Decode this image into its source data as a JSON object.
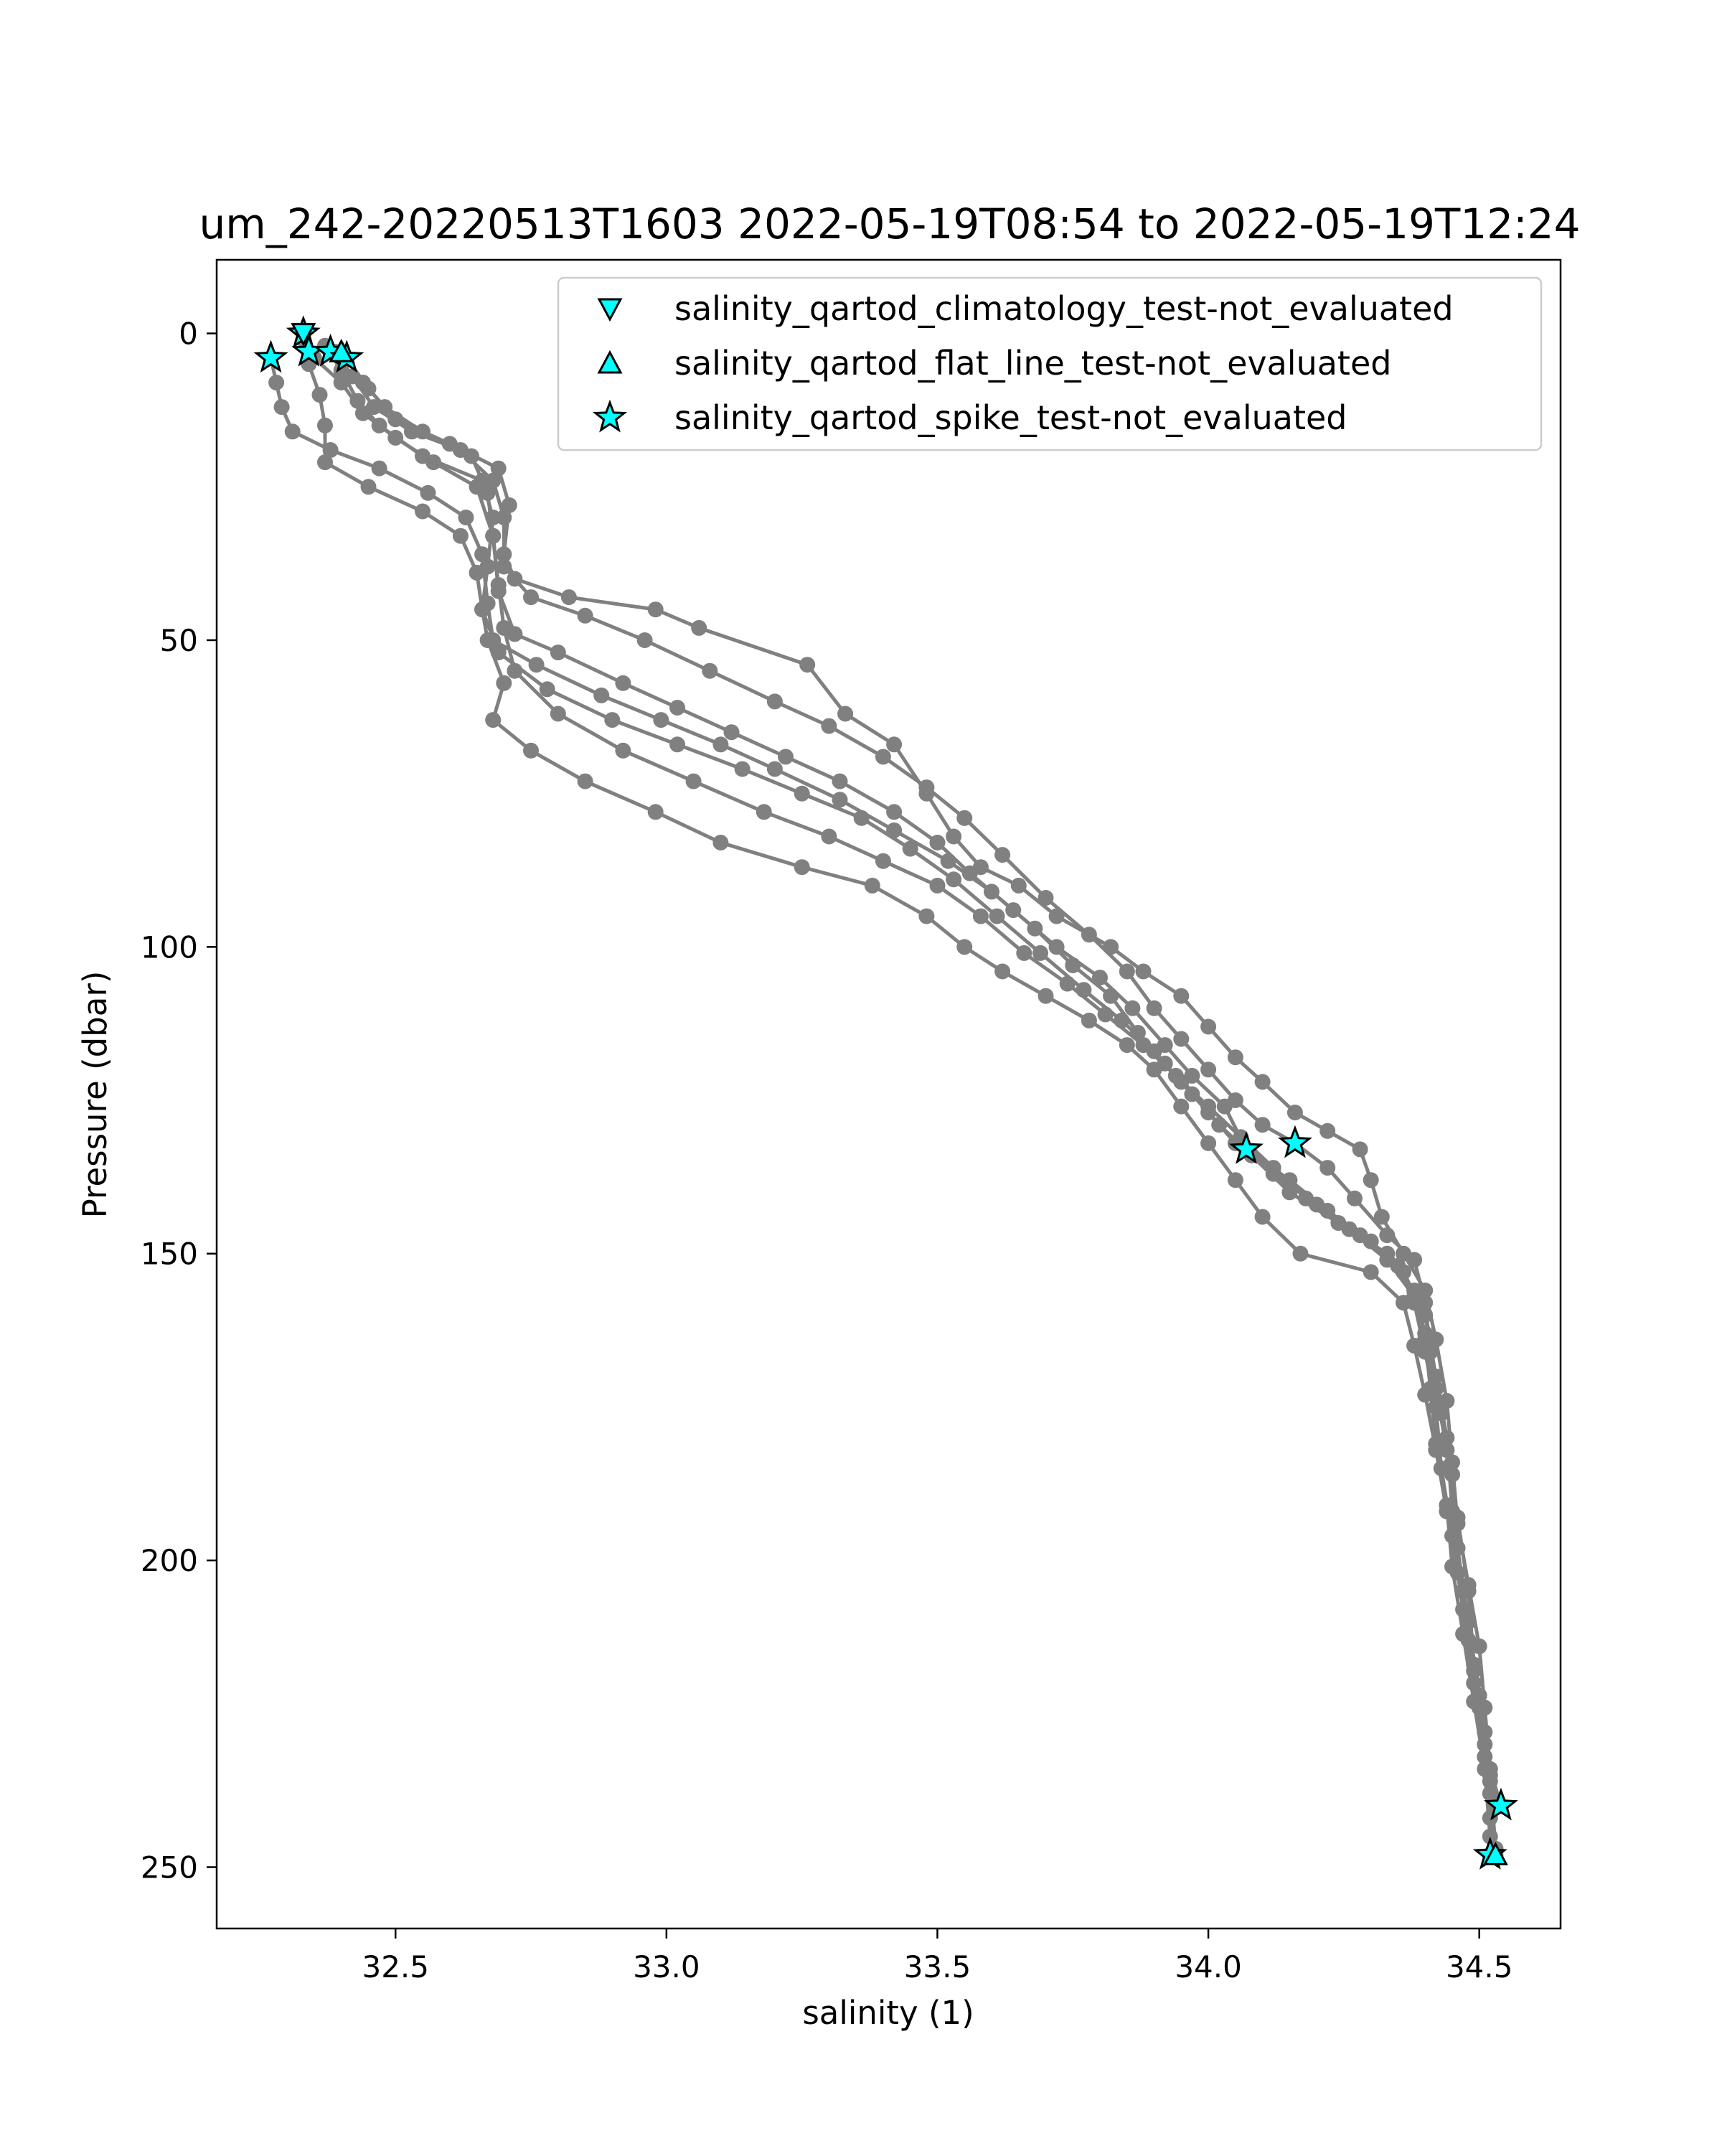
{
  "chart_data": {
    "type": "scatter",
    "title": "um_242-20220513T1603 2022-05-19T08:54 to 2022-05-19T12:24",
    "xlabel": "salinity (1)",
    "ylabel": "Pressure (dbar)",
    "xlim": [
      32.17,
      34.65
    ],
    "ylim": [
      260,
      -12
    ],
    "y_inverted": true,
    "xticks": [
      32.5,
      33.0,
      33.5,
      34.0,
      34.5
    ],
    "xtick_labels": [
      "32.5",
      "33.0",
      "33.5",
      "34.0",
      "34.5"
    ],
    "yticks": [
      0,
      50,
      100,
      150,
      200,
      250
    ],
    "ytick_labels": [
      "0",
      "50",
      "100",
      "150",
      "200",
      "250"
    ],
    "grid": false,
    "legend_position": "top-right",
    "profile_color": "#808080",
    "marker_fill": "#00ffff",
    "marker_edge": "#000000",
    "series": [
      {
        "points": [
          [
            32.33,
            0
          ],
          [
            32.35,
            4
          ],
          [
            32.4,
            8
          ],
          [
            32.44,
            13
          ],
          [
            32.5,
            17
          ],
          [
            32.57,
            21
          ],
          [
            32.65,
            25
          ],
          [
            32.68,
            33
          ],
          [
            32.69,
            42
          ],
          [
            32.72,
            49
          ],
          [
            32.8,
            52
          ],
          [
            32.92,
            57
          ],
          [
            33.02,
            61
          ],
          [
            33.12,
            65
          ],
          [
            33.22,
            69
          ],
          [
            33.32,
            73
          ],
          [
            33.42,
            78
          ],
          [
            33.5,
            83
          ],
          [
            33.56,
            88
          ],
          [
            33.64,
            94
          ],
          [
            33.72,
            100
          ],
          [
            33.8,
            105
          ],
          [
            33.86,
            110
          ],
          [
            33.92,
            116
          ],
          [
            33.97,
            121
          ],
          [
            34.03,
            126
          ],
          [
            34.07,
            133
          ],
          [
            34.15,
            138
          ],
          [
            34.22,
            143
          ],
          [
            34.3,
            148
          ],
          [
            34.36,
            153
          ],
          [
            34.4,
            160
          ],
          [
            34.42,
            170
          ],
          [
            34.44,
            180
          ],
          [
            34.45,
            192
          ],
          [
            34.47,
            205
          ],
          [
            34.49,
            218
          ],
          [
            34.51,
            230
          ],
          [
            34.53,
            240
          ]
        ]
      },
      {
        "points": [
          [
            32.39,
            3
          ],
          [
            32.42,
            7
          ],
          [
            32.46,
            12
          ],
          [
            32.53,
            16
          ],
          [
            32.62,
            19
          ],
          [
            32.68,
            24
          ],
          [
            32.7,
            30
          ],
          [
            32.7,
            38
          ],
          [
            32.75,
            43
          ],
          [
            32.85,
            46
          ],
          [
            32.96,
            50
          ],
          [
            33.08,
            55
          ],
          [
            33.2,
            60
          ],
          [
            33.3,
            64
          ],
          [
            33.4,
            69
          ],
          [
            33.48,
            74
          ],
          [
            33.55,
            79
          ],
          [
            33.62,
            85
          ],
          [
            33.7,
            92
          ],
          [
            33.78,
            98
          ],
          [
            33.85,
            104
          ],
          [
            33.9,
            110
          ],
          [
            33.95,
            115
          ],
          [
            34.0,
            120
          ],
          [
            34.05,
            125
          ],
          [
            34.1,
            129
          ],
          [
            34.16,
            132
          ],
          [
            34.22,
            136
          ],
          [
            34.27,
            141
          ],
          [
            34.33,
            147
          ],
          [
            34.38,
            151
          ],
          [
            34.4,
            158
          ],
          [
            34.41,
            166
          ],
          [
            34.43,
            176
          ],
          [
            34.45,
            186
          ],
          [
            34.46,
            198
          ],
          [
            34.48,
            210
          ],
          [
            34.5,
            222
          ],
          [
            34.52,
            235
          ],
          [
            34.53,
            247
          ]
        ]
      },
      {
        "points": [
          [
            32.27,
            4
          ],
          [
            32.28,
            8
          ],
          [
            32.29,
            12
          ],
          [
            32.31,
            16
          ],
          [
            32.38,
            19
          ],
          [
            32.47,
            22
          ],
          [
            32.56,
            26
          ],
          [
            32.63,
            30
          ],
          [
            32.66,
            36
          ],
          [
            32.67,
            44
          ],
          [
            32.68,
            50
          ],
          [
            32.76,
            54
          ],
          [
            32.88,
            59
          ],
          [
            32.99,
            63
          ],
          [
            33.1,
            67
          ],
          [
            33.2,
            71
          ],
          [
            33.32,
            76
          ],
          [
            33.42,
            81
          ],
          [
            33.52,
            86
          ],
          [
            33.6,
            91
          ],
          [
            33.68,
            97
          ],
          [
            33.75,
            103
          ],
          [
            33.82,
            108
          ],
          [
            33.87,
            114
          ],
          [
            33.92,
            119
          ],
          [
            33.97,
            124
          ],
          [
            34.02,
            129
          ],
          [
            34.08,
            134
          ],
          [
            34.15,
            140
          ],
          [
            34.24,
            145
          ],
          [
            34.33,
            150
          ],
          [
            34.38,
            156
          ],
          [
            34.4,
            163
          ],
          [
            34.42,
            172
          ],
          [
            34.44,
            182
          ],
          [
            34.46,
            193
          ],
          [
            34.48,
            205
          ],
          [
            34.49,
            217
          ],
          [
            34.51,
            228
          ],
          [
            34.52,
            238
          ],
          [
            34.52,
            248
          ]
        ]
      },
      {
        "points": [
          [
            32.33,
            1
          ],
          [
            32.34,
            5
          ],
          [
            32.36,
            10
          ],
          [
            32.37,
            15
          ],
          [
            32.37,
            21
          ],
          [
            32.45,
            25
          ],
          [
            32.55,
            29
          ],
          [
            32.62,
            33
          ],
          [
            32.65,
            39
          ],
          [
            32.66,
            45
          ],
          [
            32.69,
            52
          ],
          [
            32.78,
            58
          ],
          [
            32.9,
            63
          ],
          [
            33.02,
            67
          ],
          [
            33.14,
            71
          ],
          [
            33.25,
            75
          ],
          [
            33.36,
            79
          ],
          [
            33.45,
            84
          ],
          [
            33.53,
            89
          ],
          [
            33.61,
            95
          ],
          [
            33.69,
            101
          ],
          [
            33.77,
            107
          ],
          [
            33.84,
            112
          ],
          [
            33.9,
            117
          ],
          [
            33.95,
            122
          ],
          [
            34.0,
            127
          ],
          [
            34.05,
            132
          ],
          [
            34.12,
            137
          ],
          [
            34.2,
            142
          ],
          [
            34.28,
            147
          ],
          [
            34.35,
            152
          ],
          [
            34.38,
            158
          ],
          [
            34.4,
            166
          ],
          [
            34.42,
            175
          ],
          [
            34.43,
            185
          ],
          [
            34.45,
            196
          ],
          [
            34.47,
            208
          ],
          [
            34.49,
            220
          ],
          [
            34.51,
            232
          ],
          [
            34.52,
            242
          ],
          [
            34.53,
            248
          ]
        ]
      },
      {
        "points": [
          [
            32.41,
            4
          ],
          [
            32.45,
            9
          ],
          [
            32.5,
            14
          ],
          [
            32.6,
            18
          ],
          [
            32.69,
            22
          ],
          [
            32.71,
            28
          ],
          [
            32.7,
            36
          ],
          [
            32.72,
            40
          ],
          [
            32.82,
            43
          ],
          [
            32.98,
            45
          ],
          [
            33.06,
            48
          ],
          [
            33.26,
            54
          ],
          [
            33.33,
            62
          ],
          [
            33.42,
            67
          ],
          [
            33.48,
            75
          ],
          [
            33.53,
            82
          ],
          [
            33.58,
            87
          ],
          [
            33.65,
            90
          ],
          [
            33.72,
            95
          ],
          [
            33.82,
            100
          ],
          [
            33.88,
            104
          ],
          [
            33.95,
            108
          ],
          [
            34.0,
            113
          ],
          [
            34.05,
            118
          ],
          [
            34.1,
            122
          ],
          [
            34.16,
            127
          ],
          [
            34.22,
            130
          ],
          [
            34.28,
            133
          ],
          [
            34.3,
            138
          ],
          [
            34.32,
            144
          ],
          [
            34.36,
            150
          ],
          [
            34.4,
            156
          ],
          [
            34.42,
            164
          ],
          [
            34.44,
            174
          ],
          [
            34.45,
            184
          ],
          [
            34.46,
            194
          ],
          [
            34.48,
            204
          ],
          [
            34.5,
            214
          ],
          [
            34.51,
            224
          ],
          [
            34.52,
            234
          ],
          [
            34.54,
            240
          ]
        ]
      },
      {
        "points": [
          [
            32.4,
            3
          ],
          [
            32.44,
            8
          ],
          [
            32.48,
            12
          ],
          [
            32.55,
            16
          ],
          [
            32.64,
            20
          ],
          [
            32.67,
            26
          ],
          [
            32.68,
            33
          ],
          [
            32.69,
            41
          ],
          [
            32.7,
            48
          ],
          [
            32.72,
            55
          ],
          [
            32.8,
            62
          ],
          [
            32.92,
            68
          ],
          [
            33.05,
            73
          ],
          [
            33.18,
            78
          ],
          [
            33.3,
            82
          ],
          [
            33.4,
            86
          ],
          [
            33.5,
            90
          ],
          [
            33.58,
            95
          ],
          [
            33.66,
            101
          ],
          [
            33.74,
            106
          ],
          [
            33.81,
            111
          ],
          [
            33.88,
            116
          ],
          [
            33.94,
            121
          ],
          [
            34.0,
            126
          ],
          [
            34.06,
            131
          ],
          [
            34.12,
            136
          ],
          [
            34.18,
            141
          ],
          [
            34.26,
            146
          ],
          [
            34.33,
            151
          ],
          [
            34.38,
            157
          ],
          [
            34.4,
            164
          ],
          [
            34.41,
            172
          ],
          [
            34.42,
            181
          ],
          [
            34.44,
            191
          ],
          [
            34.45,
            201
          ],
          [
            34.47,
            212
          ],
          [
            34.49,
            223
          ],
          [
            34.51,
            234
          ],
          [
            34.52,
            245
          ]
        ]
      },
      {
        "points": [
          [
            32.37,
            2
          ],
          [
            32.4,
            6
          ],
          [
            32.43,
            11
          ],
          [
            32.47,
            15
          ],
          [
            32.55,
            20
          ],
          [
            32.66,
            24
          ],
          [
            32.68,
            30
          ],
          [
            32.67,
            38
          ],
          [
            32.66,
            45
          ],
          [
            32.67,
            50
          ],
          [
            32.7,
            57
          ],
          [
            32.68,
            63
          ],
          [
            32.75,
            68
          ],
          [
            32.85,
            73
          ],
          [
            32.98,
            78
          ],
          [
            33.1,
            83
          ],
          [
            33.25,
            87
          ],
          [
            33.38,
            90
          ],
          [
            33.48,
            95
          ],
          [
            33.55,
            100
          ],
          [
            33.62,
            104
          ],
          [
            33.7,
            108
          ],
          [
            33.78,
            112
          ],
          [
            33.85,
            116
          ],
          [
            33.9,
            120
          ],
          [
            33.95,
            126
          ],
          [
            34.0,
            132
          ],
          [
            34.05,
            138
          ],
          [
            34.1,
            144
          ],
          [
            34.17,
            150
          ],
          [
            34.3,
            153
          ],
          [
            34.36,
            158
          ],
          [
            34.38,
            165
          ],
          [
            34.4,
            173
          ],
          [
            34.42,
            182
          ],
          [
            34.44,
            192
          ],
          [
            34.46,
            202
          ],
          [
            34.48,
            213
          ],
          [
            34.5,
            224
          ],
          [
            34.52,
            236
          ],
          [
            34.53,
            247
          ]
        ]
      }
    ],
    "flag_markers": [
      {
        "x": 32.33,
        "y": 0,
        "marker": "star"
      },
      {
        "x": 32.34,
        "y": 3,
        "marker": "star"
      },
      {
        "x": 32.38,
        "y": 3,
        "marker": "star"
      },
      {
        "x": 32.41,
        "y": 4,
        "marker": "star"
      },
      {
        "x": 32.27,
        "y": 4,
        "marker": "star"
      },
      {
        "x": 32.33,
        "y": 0,
        "marker": "triangle-down"
      },
      {
        "x": 32.4,
        "y": 3,
        "marker": "triangle-up"
      },
      {
        "x": 34.07,
        "y": 133,
        "marker": "star"
      },
      {
        "x": 34.16,
        "y": 132,
        "marker": "star"
      },
      {
        "x": 34.54,
        "y": 240,
        "marker": "star"
      },
      {
        "x": 34.52,
        "y": 248,
        "marker": "star"
      },
      {
        "x": 34.53,
        "y": 248,
        "marker": "triangle-up"
      }
    ],
    "legend": [
      {
        "label": "salinity_qartod_climatology_test-not_evaluated",
        "marker": "triangle-down"
      },
      {
        "label": "salinity_qartod_flat_line_test-not_evaluated",
        "marker": "triangle-up"
      },
      {
        "label": "salinity_qartod_spike_test-not_evaluated",
        "marker": "star"
      }
    ]
  }
}
